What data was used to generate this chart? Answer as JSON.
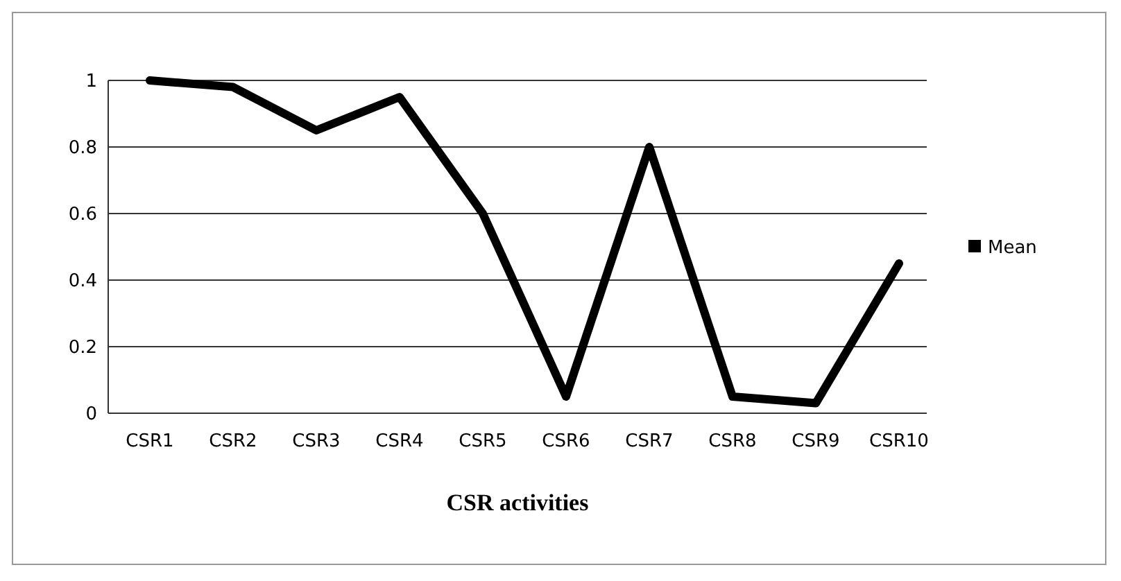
{
  "chart_data": {
    "type": "line",
    "xlabel": "CSR activities",
    "categories": [
      "CSR1",
      "CSR2",
      "CSR3",
      "CSR4",
      "CSR5",
      "CSR6",
      "CSR7",
      "CSR8",
      "CSR9",
      "CSR10"
    ],
    "series": [
      {
        "name": "Mean",
        "color": "#000000",
        "values": [
          1,
          0.98,
          0.85,
          0.95,
          0.6,
          0.05,
          0.8,
          0.05,
          0.03,
          0.45
        ]
      }
    ],
    "ylim": [
      0,
      1
    ],
    "yticks": [
      0,
      0.2,
      0.4,
      0.6,
      0.8,
      1
    ],
    "grid": "y",
    "legend": "right",
    "marker": "none"
  }
}
